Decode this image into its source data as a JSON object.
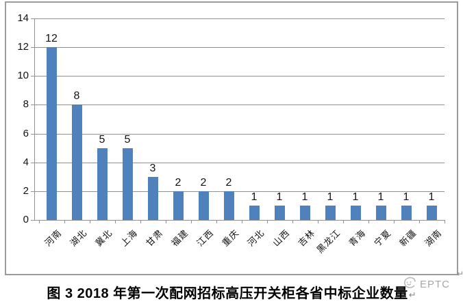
{
  "figure": {
    "caption": "图 3  2018 年第一次配网招标高压开关柜各省中标企业数量",
    "paragraph_mark": "↵",
    "corner_mark": "↵",
    "watermark": "EPTC"
  },
  "chart_data": {
    "type": "bar",
    "title": "",
    "categories": [
      "河南",
      "湖北",
      "冀北",
      "上海",
      "甘肃",
      "福建",
      "江西",
      "重庆",
      "河北",
      "山西",
      "吉林",
      "黑龙江",
      "青海",
      "宁夏",
      "新疆",
      "湖南"
    ],
    "values": [
      12,
      8,
      5,
      5,
      3,
      2,
      2,
      2,
      1,
      1,
      1,
      1,
      1,
      1,
      1,
      1
    ],
    "xlabel": "",
    "ylabel": "",
    "y_ticks": [
      0,
      2,
      4,
      6,
      8,
      10,
      12,
      14
    ],
    "ylim": [
      0,
      14
    ],
    "grid": true,
    "legend": false,
    "data_labels": true,
    "bar_color": "#4f81bd",
    "gridline_color": "#909090",
    "axis_color": "#909090",
    "frame_border_color": "#9b9b9b",
    "text_color": "#111111"
  }
}
